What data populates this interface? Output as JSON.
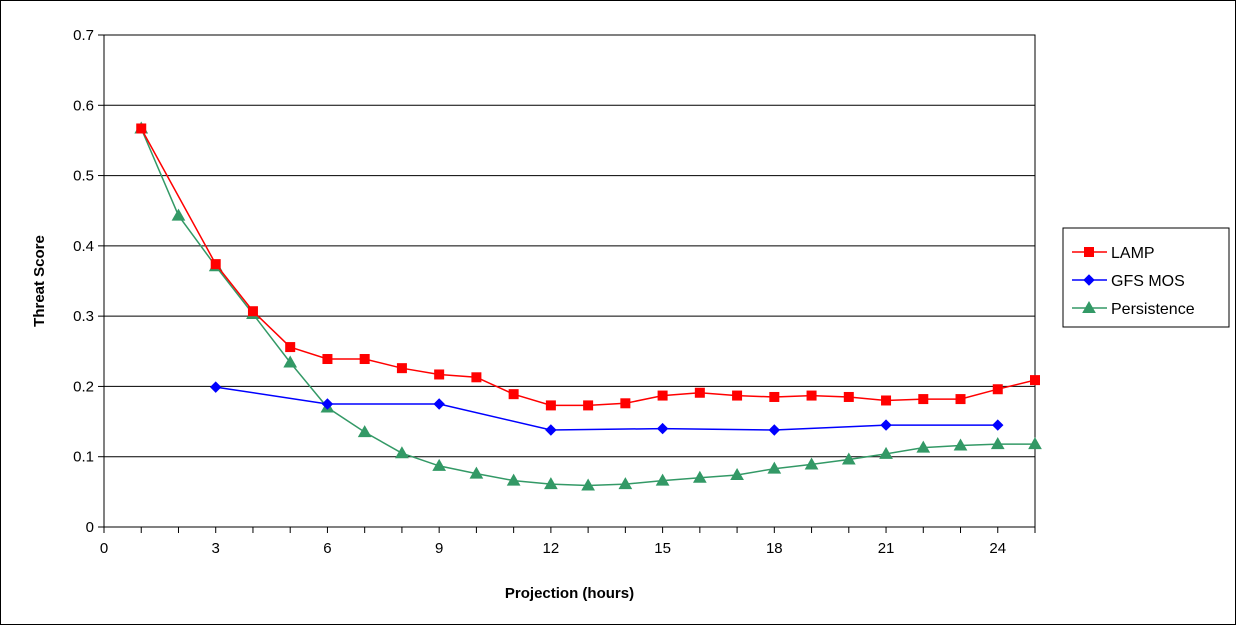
{
  "chart_data": {
    "type": "line",
    "title": "",
    "xlabel": "Projection (hours)",
    "ylabel": "Threat Score",
    "xlim": [
      0,
      25
    ],
    "ylim": [
      0,
      0.7
    ],
    "xticks": [
      0,
      3,
      6,
      9,
      12,
      15,
      18,
      21,
      24
    ],
    "yticks": [
      0,
      0.1,
      0.2,
      0.3,
      0.4,
      0.5,
      0.6,
      0.7
    ],
    "ytick_labels": [
      "0",
      "0.1",
      "0.2",
      "0.3",
      "0.4",
      "0.5",
      "0.6",
      "0.7"
    ],
    "grid": "horizontal",
    "legend_position": "right",
    "series": [
      {
        "name": "LAMP",
        "color": "#ff0000",
        "marker": "square",
        "points": [
          [
            1,
            0.567
          ],
          [
            3,
            0.374
          ],
          [
            4,
            0.307
          ],
          [
            5,
            0.256
          ],
          [
            6,
            0.239
          ],
          [
            7,
            0.239
          ],
          [
            8,
            0.226
          ],
          [
            9,
            0.217
          ],
          [
            10,
            0.213
          ],
          [
            11,
            0.189
          ],
          [
            12,
            0.173
          ],
          [
            13,
            0.173
          ],
          [
            14,
            0.176
          ],
          [
            15,
            0.187
          ],
          [
            16,
            0.191
          ],
          [
            17,
            0.187
          ],
          [
            18,
            0.185
          ],
          [
            19,
            0.187
          ],
          [
            20,
            0.185
          ],
          [
            21,
            0.18
          ],
          [
            22,
            0.182
          ],
          [
            23,
            0.182
          ],
          [
            24,
            0.196
          ],
          [
            25,
            0.209
          ]
        ]
      },
      {
        "name": "GFS MOS",
        "color": "#0000ff",
        "marker": "diamond",
        "points": [
          [
            3,
            0.199
          ],
          [
            6,
            0.175
          ],
          [
            9,
            0.175
          ],
          [
            12,
            0.138
          ],
          [
            15,
            0.14
          ],
          [
            18,
            0.138
          ],
          [
            21,
            0.145
          ],
          [
            24,
            0.145
          ]
        ]
      },
      {
        "name": "Persistence",
        "color": "#339966",
        "marker": "triangle",
        "points": [
          [
            1,
            0.567
          ],
          [
            2,
            0.443
          ],
          [
            3,
            0.371
          ],
          [
            4,
            0.303
          ],
          [
            5,
            0.234
          ],
          [
            6,
            0.17
          ],
          [
            7,
            0.135
          ],
          [
            8,
            0.105
          ],
          [
            9,
            0.087
          ],
          [
            10,
            0.076
          ],
          [
            11,
            0.066
          ],
          [
            12,
            0.061
          ],
          [
            13,
            0.059
          ],
          [
            14,
            0.061
          ],
          [
            15,
            0.066
          ],
          [
            16,
            0.07
          ],
          [
            17,
            0.074
          ],
          [
            18,
            0.083
          ],
          [
            19,
            0.089
          ],
          [
            20,
            0.096
          ],
          [
            21,
            0.104
          ],
          [
            22,
            0.113
          ],
          [
            23,
            0.116
          ],
          [
            24,
            0.118
          ],
          [
            25,
            0.118
          ]
        ]
      }
    ]
  }
}
